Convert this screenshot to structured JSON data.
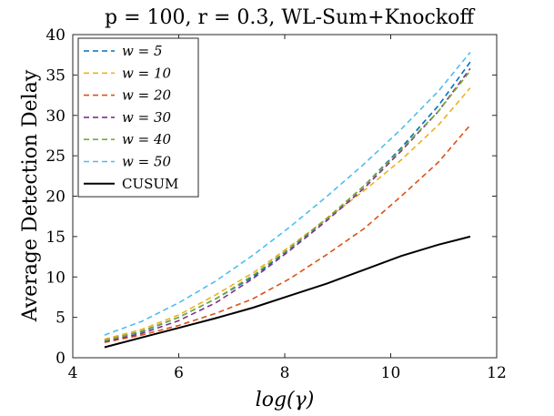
{
  "chart_data": {
    "type": "line",
    "title": "p = 100, r = 0.3, WL-Sum+Knockoff",
    "xlabel": "log(γ)",
    "ylabel": "Average Detection Delay",
    "xlim": [
      4,
      12
    ],
    "ylim": [
      0,
      40
    ],
    "xticks": [
      "4",
      "6",
      "8",
      "10",
      "12"
    ],
    "yticks": [
      "0",
      "5",
      "10",
      "15",
      "20",
      "25",
      "30",
      "35",
      "40"
    ],
    "legend_position": "top-left",
    "x": [
      4.6,
      5.3,
      6.0,
      6.7,
      7.4,
      8.1,
      8.8,
      9.5,
      10.2,
      10.9,
      11.5
    ],
    "series": [
      {
        "name": "w = 5",
        "color": "#0072BD",
        "style": "dashed",
        "values": [
          2.2,
          3.2,
          5.0,
          7.3,
          10.0,
          13.5,
          17.2,
          21.3,
          26.0,
          31.2,
          36.6
        ]
      },
      {
        "name": "w = 10",
        "color": "#EDB120",
        "style": "dashed",
        "values": [
          2.3,
          3.5,
          5.3,
          7.8,
          10.5,
          13.8,
          17.2,
          20.7,
          24.5,
          28.8,
          33.4
        ]
      },
      {
        "name": "w = 20",
        "color": "#D95319",
        "style": "dashed",
        "values": [
          1.9,
          2.8,
          4.0,
          5.5,
          7.3,
          9.8,
          12.8,
          16.0,
          20.0,
          24.2,
          28.8
        ]
      },
      {
        "name": "w = 30",
        "color": "#7E2F8E",
        "style": "dashed",
        "values": [
          2.0,
          3.0,
          4.6,
          6.8,
          9.8,
          13.3,
          17.0,
          21.0,
          25.6,
          30.5,
          35.8
        ]
      },
      {
        "name": "w = 40",
        "color": "#77AC30",
        "style": "dashed",
        "values": [
          2.1,
          3.3,
          5.0,
          7.3,
          10.2,
          13.6,
          17.3,
          21.3,
          25.8,
          30.5,
          35.5
        ]
      },
      {
        "name": "w = 50",
        "color": "#4DBEEE",
        "style": "dashed",
        "values": [
          2.8,
          4.5,
          6.8,
          9.5,
          12.7,
          16.2,
          20.0,
          24.0,
          28.3,
          33.0,
          37.8
        ]
      },
      {
        "name": "CUSUM",
        "color": "#000000",
        "style": "solid",
        "values": [
          1.3,
          2.5,
          3.7,
          4.9,
          6.2,
          7.7,
          9.2,
          10.9,
          12.6,
          14.0,
          15.0
        ]
      }
    ]
  }
}
